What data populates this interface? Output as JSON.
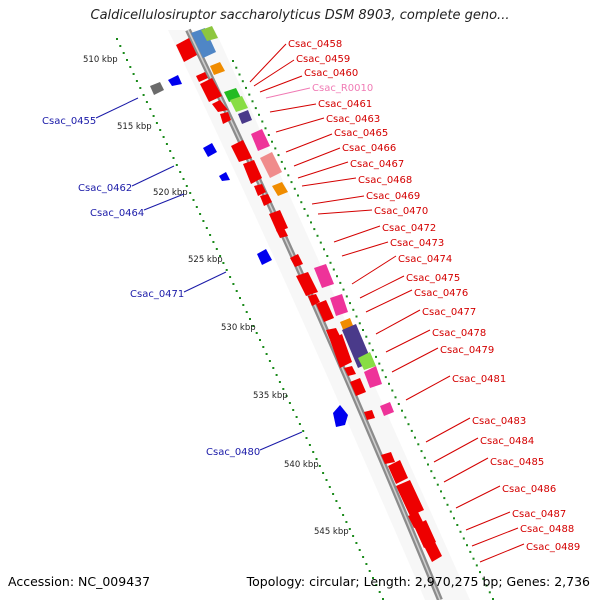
{
  "title": "Caldicellulosiruptor saccharolyticus DSM 8903, complete geno...",
  "footer": {
    "accession": "Accession: NC_009437",
    "summary": "Topology: circular; Length: 2,970,275 bp; Genes: 2,736"
  },
  "colors": {
    "forward_label": "#d40000",
    "reverse_label": "#1a1aa8",
    "rna_label": "#f07ab4",
    "backbone": "#8c8c8c",
    "tick": "#1a8a1a"
  },
  "kbp_markers": [
    "510 kbp",
    "515 kbp",
    "520 kbp",
    "525 kbp",
    "530 kbp",
    "535 kbp",
    "540 kbp",
    "545 kbp"
  ],
  "forward_labels": [
    "Csac_0458",
    "Csac_0459",
    "Csac_0460",
    "Csac_R0010",
    "Csac_0461",
    "Csac_0463",
    "Csac_0465",
    "Csac_0466",
    "Csac_0467",
    "Csac_0468",
    "Csac_0469",
    "Csac_0470",
    "Csac_0472",
    "Csac_0473",
    "Csac_0474",
    "Csac_0475",
    "Csac_0476",
    "Csac_0477",
    "Csac_0478",
    "Csac_0479",
    "Csac_0481",
    "Csac_0483",
    "Csac_0484",
    "Csac_0485",
    "Csac_0486",
    "Csac_0487",
    "Csac_0488",
    "Csac_0489"
  ],
  "reverse_labels": [
    "Csac_0455",
    "Csac_0462",
    "Csac_0464",
    "Csac_0471",
    "Csac_0480"
  ]
}
